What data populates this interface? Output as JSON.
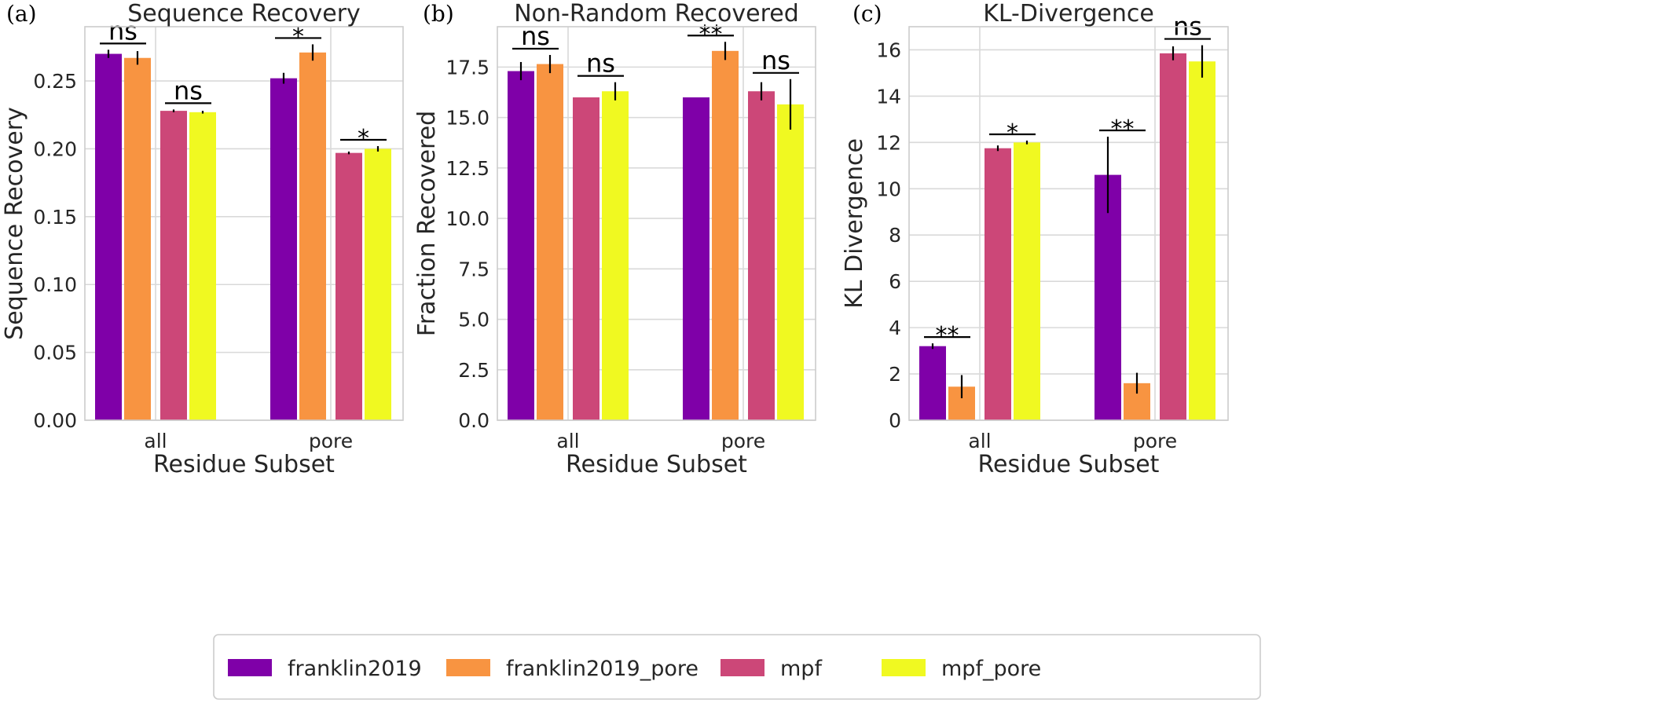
{
  "chart_data": [
    {
      "panel": "(a)",
      "type": "bar",
      "title": "Sequence Recovery",
      "xlabel": "Residue Subset",
      "ylabel": "Sequence Recovery",
      "categories": [
        "all",
        "pore"
      ],
      "ylim": [
        0,
        0.29
      ],
      "yticks": [
        0.0,
        0.05,
        0.1,
        0.15,
        0.2,
        0.25
      ],
      "ytick_labels": [
        "0.00",
        "0.05",
        "0.10",
        "0.15",
        "0.20",
        "0.25"
      ],
      "series": [
        {
          "name": "franklin2019",
          "values": [
            0.27,
            0.252
          ],
          "errors": [
            0.003,
            0.004
          ]
        },
        {
          "name": "franklin2019_pore",
          "values": [
            0.267,
            0.271
          ],
          "errors": [
            0.005,
            0.006
          ]
        },
        {
          "name": "mpf",
          "values": [
            0.228,
            0.197
          ],
          "errors": [
            0.001,
            0.001
          ]
        },
        {
          "name": "mpf_pore",
          "values": [
            0.227,
            0.2
          ],
          "errors": [
            0.001,
            0.002
          ]
        }
      ],
      "annotations": [
        {
          "text": "ns",
          "category": 0,
          "pair": [
            0,
            1
          ]
        },
        {
          "text": "ns",
          "category": 0,
          "pair": [
            2,
            3
          ]
        },
        {
          "text": "*",
          "category": 1,
          "pair": [
            0,
            1
          ]
        },
        {
          "text": "*",
          "category": 1,
          "pair": [
            2,
            3
          ]
        }
      ],
      "grid": true
    },
    {
      "panel": "(b)",
      "type": "bar",
      "title": "Non-Random Recovered",
      "xlabel": "Residue Subset",
      "ylabel": "Fraction Recovered",
      "categories": [
        "all",
        "pore"
      ],
      "ylim": [
        0,
        19.5
      ],
      "yticks": [
        0.0,
        2.5,
        5.0,
        7.5,
        10.0,
        12.5,
        15.0,
        17.5
      ],
      "ytick_labels": [
        "0.0",
        "2.5",
        "5.0",
        "7.5",
        "10.0",
        "12.5",
        "15.0",
        "17.5"
      ],
      "series": [
        {
          "name": "franklin2019",
          "values": [
            17.3,
            16.0
          ],
          "errors": [
            0.45,
            0.0
          ]
        },
        {
          "name": "franklin2019_pore",
          "values": [
            17.65,
            18.3
          ],
          "errors": [
            0.45,
            0.45
          ]
        },
        {
          "name": "mpf",
          "values": [
            16.0,
            16.3
          ],
          "errors": [
            0.0,
            0.45
          ]
        },
        {
          "name": "mpf_pore",
          "values": [
            16.3,
            15.65
          ],
          "errors": [
            0.45,
            1.25
          ]
        }
      ],
      "annotations": [
        {
          "text": "ns",
          "category": 0,
          "pair": [
            0,
            1
          ]
        },
        {
          "text": "ns",
          "category": 0,
          "pair": [
            2,
            3
          ]
        },
        {
          "text": "**",
          "category": 1,
          "pair": [
            0,
            1
          ]
        },
        {
          "text": "ns",
          "category": 1,
          "pair": [
            2,
            3
          ]
        }
      ],
      "grid": true
    },
    {
      "panel": "(c)",
      "type": "bar",
      "title": "KL-Divergence",
      "xlabel": "Residue Subset",
      "ylabel": "KL Divergence",
      "categories": [
        "all",
        "pore"
      ],
      "ylim": [
        0,
        17.0
      ],
      "yticks": [
        0,
        2,
        4,
        6,
        8,
        10,
        12,
        14,
        16
      ],
      "ytick_labels": [
        "0",
        "2",
        "4",
        "6",
        "8",
        "10",
        "12",
        "14",
        "16"
      ],
      "series": [
        {
          "name": "franklin2019",
          "values": [
            3.2,
            10.6
          ],
          "errors": [
            0.12,
            1.65
          ]
        },
        {
          "name": "franklin2019_pore",
          "values": [
            1.45,
            1.6
          ],
          "errors": [
            0.5,
            0.45
          ]
        },
        {
          "name": "mpf",
          "values": [
            11.75,
            15.85
          ],
          "errors": [
            0.12,
            0.3
          ]
        },
        {
          "name": "mpf_pore",
          "values": [
            12.0,
            15.5
          ],
          "errors": [
            0.08,
            0.7
          ]
        }
      ],
      "annotations": [
        {
          "text": "**",
          "category": 0,
          "pair": [
            0,
            1
          ]
        },
        {
          "text": "*",
          "category": 0,
          "pair": [
            2,
            3
          ]
        },
        {
          "text": "**",
          "category": 1,
          "pair": [
            0,
            1
          ]
        },
        {
          "text": "ns",
          "category": 1,
          "pair": [
            2,
            3
          ]
        }
      ],
      "grid": true
    }
  ],
  "legend": {
    "placement": "bottom-center",
    "entries": [
      {
        "label": "franklin2019",
        "color": "#7f00a8"
      },
      {
        "label": "franklin2019_pore",
        "color": "#f89441"
      },
      {
        "label": "mpf",
        "color": "#cc4778"
      },
      {
        "label": "mpf_pore",
        "color": "#f0f921"
      }
    ]
  },
  "colors": {
    "franklin2019": "#7f00a8",
    "franklin2019_pore": "#f89441",
    "mpf": "#cc4778",
    "mpf_pore": "#f0f921",
    "grid": "#d9d9d9",
    "axes_edge": "#cccccc",
    "text": "#262626"
  }
}
